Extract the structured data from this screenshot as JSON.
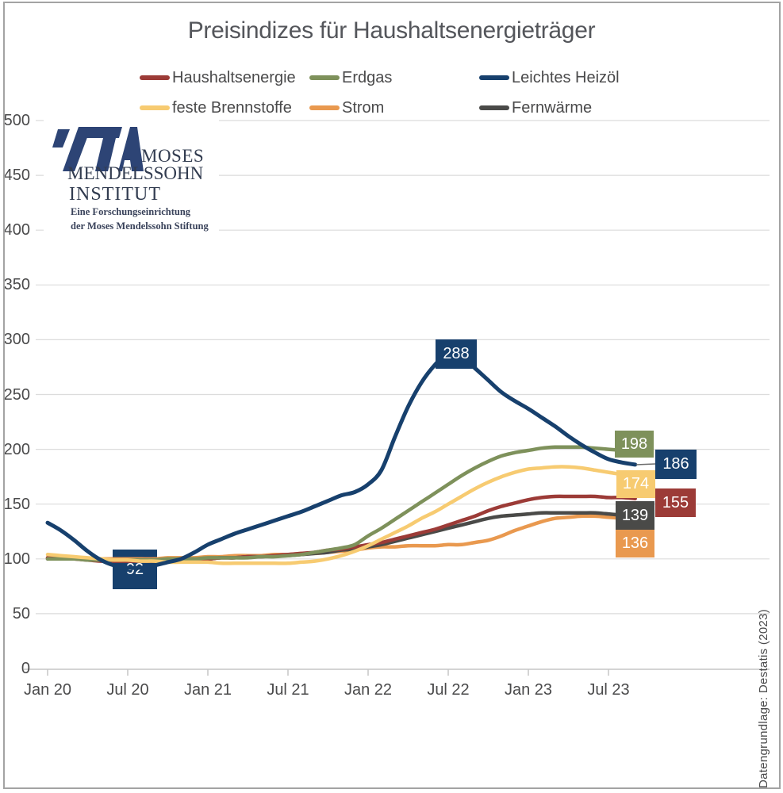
{
  "title": "Preisindizes für Haushaltsenergieträger",
  "source_note": "Datengrundlage: Destatis (2023)",
  "logo": {
    "name_line1": "MOSES",
    "name_line2": "MENDELSSOHN",
    "name_line3": "INSTITUT",
    "sub_line1": "Eine Forschungseinrichtung",
    "sub_line2": "der Moses Mendelssohn Stiftung",
    "mark_color": "#2d4475"
  },
  "colors": {
    "grid": "#dcdcdc",
    "axis": "#c6c6c6",
    "tick_text": "#4a4a4b",
    "title_text": "#54565b",
    "label_text": "#ffffff",
    "leader": "#6b6b6b"
  },
  "chart_data": {
    "type": "line",
    "title": "Preisindizes für Haushaltsenergieträger",
    "x_start": "Jan 2020",
    "x_end": "Sep 2023",
    "x_interval": "monthly",
    "x_tick_labels": [
      "Jan 20",
      "Jul 20",
      "Jan 21",
      "Jul 21",
      "Jan 22",
      "Jul 22",
      "Jan 23",
      "Jul 23"
    ],
    "y_ticks": [
      0,
      50,
      100,
      150,
      200,
      250,
      300,
      350,
      400,
      450,
      500
    ],
    "ylim": [
      0,
      500
    ],
    "grid": "horizontal",
    "legend_position": "top",
    "series": [
      {
        "name": "Haushaltsenergie",
        "color": "#9c3b37",
        "values": [
          101,
          101,
          100,
          99,
          98,
          98,
          98,
          98,
          98,
          99,
          99,
          100,
          100,
          101,
          101,
          102,
          102,
          103,
          104,
          105,
          106,
          108,
          109,
          111,
          113,
          115,
          118,
          121,
          124,
          127,
          131,
          135,
          139,
          144,
          148,
          151,
          154,
          156,
          157,
          157,
          157,
          157,
          156,
          156,
          155
        ]
      },
      {
        "name": "Erdgas",
        "color": "#7e915b",
        "values": [
          100,
          100,
          100,
          99,
          99,
          99,
          99,
          99,
          99,
          100,
          100,
          100,
          101,
          101,
          101,
          101,
          102,
          102,
          103,
          104,
          106,
          108,
          110,
          113,
          121,
          128,
          136,
          144,
          152,
          160,
          168,
          176,
          183,
          189,
          194,
          197,
          199,
          201,
          202,
          202,
          202,
          201,
          200,
          199,
          198
        ]
      },
      {
        "name": "Leichtes Heizöl",
        "color": "#17406d",
        "values": [
          133,
          126,
          117,
          107,
          99,
          94,
          92,
          92,
          94,
          97,
          100,
          106,
          113,
          118,
          123,
          127,
          131,
          135,
          139,
          143,
          148,
          153,
          158,
          161,
          168,
          181,
          211,
          239,
          261,
          277,
          288,
          284,
          274,
          263,
          252,
          244,
          237,
          229,
          221,
          212,
          204,
          197,
          191,
          188,
          186
        ]
      },
      {
        "name": "feste Brennstoffe",
        "color": "#f7cb71",
        "values": [
          104,
          103,
          102,
          101,
          100,
          99,
          99,
          98,
          98,
          97,
          97,
          97,
          97,
          96,
          96,
          96,
          96,
          96,
          96,
          97,
          98,
          100,
          103,
          107,
          112,
          118,
          124,
          130,
          137,
          143,
          150,
          157,
          164,
          170,
          175,
          179,
          182,
          183,
          184,
          184,
          183,
          181,
          179,
          177,
          174
        ]
      },
      {
        "name": "Strom",
        "color": "#e9994f",
        "values": [
          101,
          101,
          101,
          100,
          100,
          100,
          100,
          100,
          100,
          101,
          101,
          101,
          102,
          102,
          103,
          103,
          103,
          104,
          104,
          105,
          105,
          106,
          107,
          108,
          110,
          111,
          111,
          112,
          112,
          112,
          113,
          113,
          115,
          117,
          121,
          126,
          130,
          134,
          137,
          138,
          139,
          139,
          138,
          137,
          136
        ]
      },
      {
        "name": "Fernwärme",
        "color": "#4a4a48",
        "values": [
          100,
          100,
          100,
          100,
          99,
          99,
          99,
          99,
          99,
          99,
          100,
          100,
          100,
          101,
          101,
          102,
          102,
          103,
          103,
          104,
          105,
          106,
          108,
          109,
          111,
          113,
          116,
          119,
          122,
          125,
          128,
          131,
          134,
          137,
          139,
          140,
          141,
          142,
          142,
          142,
          142,
          142,
          141,
          140,
          139
        ]
      }
    ],
    "point_labels": [
      {
        "value": 92,
        "series": "Leichtes Heizöl",
        "at": "Jul 20"
      },
      {
        "value": 288,
        "series": "Leichtes Heizöl",
        "at": "Jul 22"
      }
    ],
    "end_labels": [
      {
        "value": 198,
        "series": "Erdgas"
      },
      {
        "value": 186,
        "series": "Leichtes Heizöl"
      },
      {
        "value": 174,
        "series": "feste Brennstoffe"
      },
      {
        "value": 155,
        "series": "Haushaltsenergie"
      },
      {
        "value": 139,
        "series": "Fernwärme"
      },
      {
        "value": 136,
        "series": "Strom"
      }
    ]
  }
}
